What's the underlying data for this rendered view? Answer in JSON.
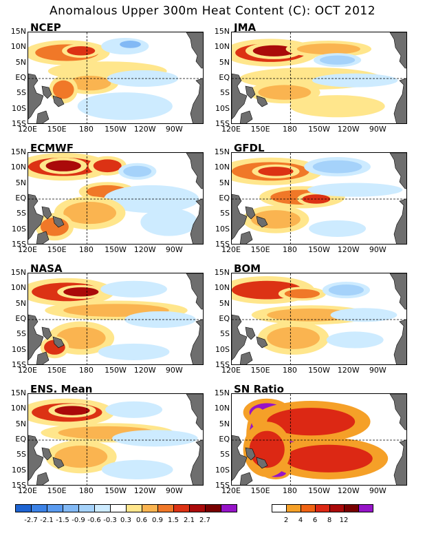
{
  "title": "Anomalous Upper 300m Heat Content (C): OCT 2012",
  "lat_labels": [
    "15N",
    "10N",
    "5N",
    "EQ",
    "5S",
    "10S",
    "15S"
  ],
  "lon_labels": [
    "120E",
    "150E",
    "180",
    "150W",
    "120W",
    "90W"
  ],
  "panels": [
    {
      "name": "NCEP"
    },
    {
      "name": "JMA"
    },
    {
      "name": "ECMWF"
    },
    {
      "name": "GFDL"
    },
    {
      "name": "NASA"
    },
    {
      "name": "BOM"
    },
    {
      "name": "ENS. Mean"
    },
    {
      "name": "SN Ratio"
    }
  ],
  "anomaly_colorbar": {
    "labels": [
      "-2.7",
      "-2.1",
      "-1.5",
      "-0.9",
      "-0.6",
      "-0.3",
      "0.3",
      "0.6",
      "0.9",
      "1.5",
      "2.1",
      "2.7"
    ],
    "colors": [
      "#1e64d2",
      "#3c82e6",
      "#5a9bf0",
      "#82b9f5",
      "#a5d2fa",
      "#cdebff",
      "#ffffff",
      "#ffe68c",
      "#fab450",
      "#f07828",
      "#dc3214",
      "#aa0a0a",
      "#780000",
      "#9614c8"
    ]
  },
  "sn_colorbar": {
    "labels": [
      "2",
      "4",
      "6",
      "8",
      "12"
    ],
    "colors": [
      "#ffffff",
      "#f5a028",
      "#f06414",
      "#dc2814",
      "#aa0a0a",
      "#780000",
      "#9614c8"
    ]
  }
}
